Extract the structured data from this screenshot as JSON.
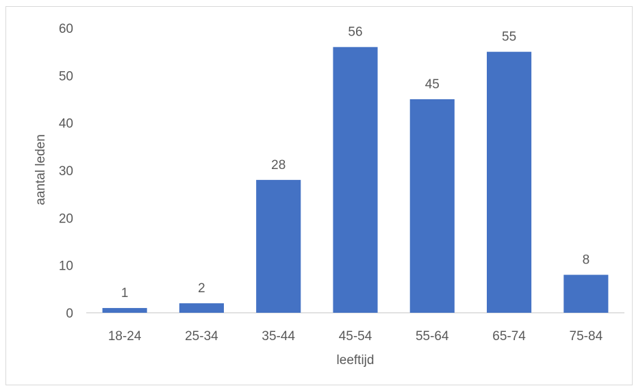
{
  "chart_data": {
    "type": "bar",
    "title": "",
    "xlabel": "leeftijd",
    "ylabel": "aantal leden",
    "categories": [
      "18-24",
      "25-34",
      "35-44",
      "45-54",
      "55-64",
      "65-74",
      "75-84"
    ],
    "values": [
      1,
      2,
      28,
      56,
      45,
      55,
      8
    ],
    "data_labels": [
      "1",
      "2",
      "28",
      "56",
      "45",
      "55",
      "8"
    ],
    "yticks": [
      "0",
      "10",
      "20",
      "30",
      "40",
      "50",
      "60"
    ],
    "ylim": [
      0,
      60
    ],
    "grid": false,
    "legend": "none",
    "bar_color": "#4472c4"
  }
}
